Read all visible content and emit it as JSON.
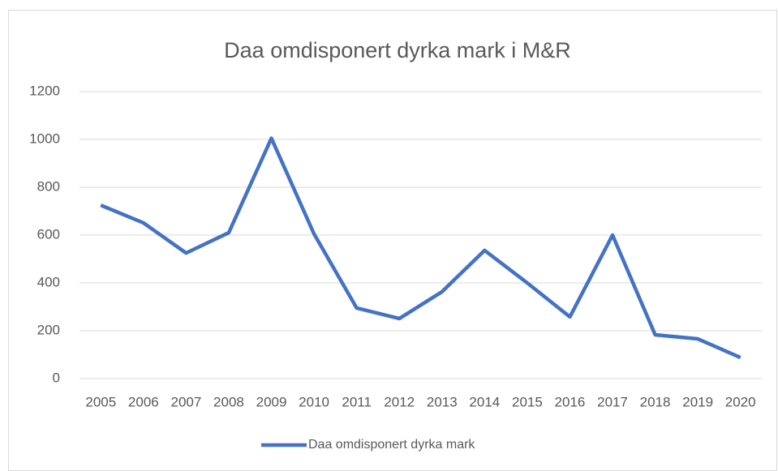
{
  "chart_data": {
    "type": "line",
    "title": "Daa omdisponert dyrka mark i M&R",
    "categories": [
      "2005",
      "2006",
      "2007",
      "2008",
      "2009",
      "2010",
      "2011",
      "2012",
      "2013",
      "2014",
      "2015",
      "2016",
      "2017",
      "2018",
      "2019",
      "2020"
    ],
    "series": [
      {
        "name": "Daa omdisponert dyrka mark",
        "color": "#4472c4",
        "values": [
          725,
          651,
          525,
          610,
          1005,
          605,
          295,
          251,
          363,
          536,
          400,
          258,
          600,
          183,
          166,
          88
        ]
      }
    ],
    "ylim": [
      0,
      1200
    ],
    "yticks": [
      0,
      200,
      400,
      600,
      800,
      1000,
      1200
    ],
    "grid": true,
    "legend": "bottom"
  }
}
